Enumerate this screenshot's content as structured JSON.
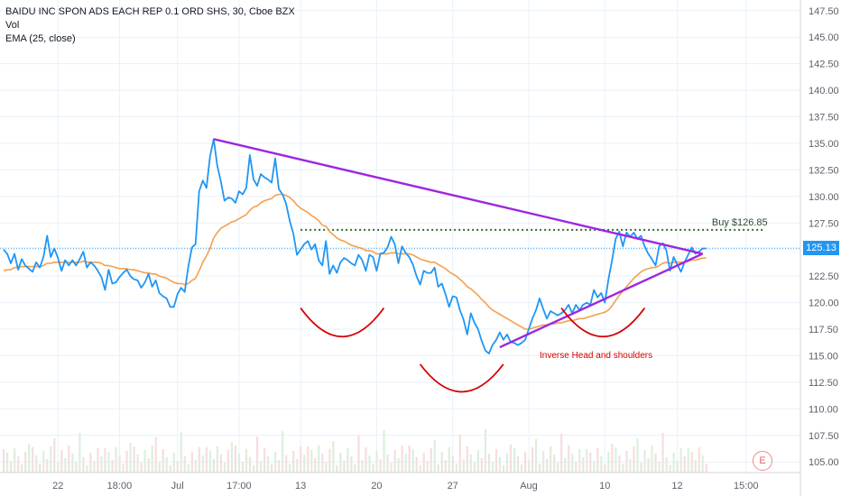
{
  "legend": {
    "title": "BAIDU INC SPON ADS EACH REP 0.1 ORD SHS, 30, Cboe BZX",
    "vol": "Vol",
    "ema": "EMA (25, close)"
  },
  "colors": {
    "price": "#2196f3",
    "ema": "#f5a04d",
    "triangle": "#9c27e0",
    "shoulders": "#d50000",
    "buy_line": "#2e6b2e",
    "last_price_line": "#2196f3",
    "grid": "#e9f1fb"
  },
  "last_price_label": "125.13",
  "logo_letter": "E",
  "chart_data": {
    "type": "line",
    "ylim": [
      104,
      148.5
    ],
    "y_ticks": [
      105,
      107.5,
      110,
      112.5,
      115,
      117.5,
      120,
      122.5,
      125,
      127.5,
      130,
      132.5,
      135,
      137.5,
      140,
      142.5,
      145,
      147.5
    ],
    "y_tick_labels": [
      "105.00",
      "107.50",
      "110.00",
      "112.50",
      "115.00",
      "117.50",
      "120.00",
      "122.50",
      "125.00",
      "127.50",
      "130.00",
      "132.50",
      "135.00",
      "137.50",
      "140.00",
      "142.50",
      "145.00",
      "147.50"
    ],
    "x_tick_labels": [
      "22",
      "18:00",
      "Jul",
      "17:00",
      "13",
      "20",
      "27",
      "Aug",
      "10",
      "12",
      "15:00"
    ],
    "x_tick_index": [
      15,
      32,
      48,
      65,
      82,
      103,
      124,
      145,
      166,
      186,
      205
    ],
    "x_range": [
      -1,
      220
    ],
    "grid": true,
    "last_price": 125.13,
    "series": [
      {
        "role": "price",
        "values": [
          125.0,
          124.6,
          123.7,
          124.6,
          123.1,
          124.1,
          123.5,
          123.2,
          122.9,
          123.8,
          123.3,
          124.3,
          126.3,
          124.3,
          125.1,
          124.2,
          123.0,
          124.0,
          123.5,
          124.0,
          123.5,
          124.1,
          124.8,
          123.3,
          123.8,
          123.5,
          123.0,
          122.4,
          121.2,
          123.1,
          121.8,
          121.9,
          122.4,
          122.8,
          123.1,
          122.5,
          122.2,
          122.1,
          121.4,
          121.9,
          122.7,
          121.5,
          122.1,
          120.9,
          120.6,
          120.4,
          119.6,
          119.6,
          120.8,
          121.4,
          121.0,
          123.4,
          125.2,
          125.5,
          130.5,
          131.5,
          130.8,
          133.8,
          135.4,
          132.9,
          131.4,
          129.6,
          129.9,
          129.8,
          129.4,
          130.5,
          130.2,
          130.8,
          133.9,
          131.6,
          131.0,
          132.1,
          131.8,
          131.6,
          131.3,
          133.6,
          130.7,
          130.2,
          129.3,
          127.7,
          126.5,
          124.5,
          125.0,
          125.5,
          125.8,
          125.0,
          125.5,
          124.0,
          123.5,
          125.8,
          122.7,
          123.5,
          122.8,
          123.8,
          124.2,
          124.0,
          123.7,
          123.5,
          124.5,
          124.0,
          123.0,
          124.5,
          124.3,
          123.0,
          124.6,
          124.7,
          125.2,
          126.2,
          125.5,
          123.7,
          125.3,
          124.7,
          124.3,
          123.6,
          122.5,
          121.7,
          123.0,
          122.8,
          122.8,
          123.3,
          121.5,
          121.8,
          120.8,
          119.6,
          120.6,
          120.5,
          119.3,
          118.4,
          117.0,
          119.0,
          118.1,
          117.5,
          116.4,
          115.5,
          115.2,
          116.0,
          116.5,
          117.2,
          116.5,
          117.0,
          116.3,
          116.2,
          116.0,
          116.2,
          116.5,
          117.5,
          118.5,
          119.3,
          120.4,
          119.4,
          118.5,
          119.2,
          119.0,
          118.8,
          119.0,
          119.3,
          119.8,
          119.0,
          119.8,
          119.3,
          119.8,
          120.0,
          119.8,
          121.2,
          120.5,
          120.9,
          120.0,
          122.2,
          124.0,
          126.0,
          126.7,
          125.3,
          126.6,
          126.2,
          126.6,
          126.0,
          126.3,
          125.3,
          124.6,
          124.1,
          123.5,
          125.3,
          125.6,
          124.9,
          123.0,
          124.3,
          123.6,
          122.9,
          123.8,
          124.5,
          125.2,
          124.6,
          124.8,
          125.1,
          125.1
        ],
        "ema": [
          123.0,
          123.1,
          123.1,
          123.3,
          123.3,
          123.4,
          123.4,
          123.4,
          123.4,
          123.4,
          123.4,
          123.5,
          123.7,
          123.7,
          123.8,
          123.8,
          123.8,
          123.8,
          123.8,
          123.8,
          123.8,
          123.8,
          123.9,
          123.8,
          123.8,
          123.8,
          123.8,
          123.7,
          123.5,
          123.5,
          123.4,
          123.3,
          123.2,
          123.2,
          123.2,
          123.1,
          123.1,
          123.0,
          122.9,
          122.8,
          122.8,
          122.7,
          122.7,
          122.5,
          122.4,
          122.3,
          122.1,
          121.9,
          121.8,
          121.8,
          121.7,
          121.8,
          122.1,
          122.3,
          123.0,
          123.8,
          124.4,
          125.1,
          126.1,
          126.6,
          127.0,
          127.2,
          127.4,
          127.6,
          127.7,
          127.9,
          128.1,
          128.3,
          128.7,
          129.0,
          129.1,
          129.4,
          129.6,
          129.7,
          129.8,
          130.1,
          130.2,
          130.2,
          130.1,
          129.9,
          129.6,
          129.2,
          128.9,
          128.7,
          128.5,
          128.2,
          128.0,
          127.7,
          127.3,
          127.2,
          126.7,
          126.4,
          126.1,
          125.9,
          125.8,
          125.6,
          125.4,
          125.3,
          125.2,
          125.1,
          124.9,
          124.9,
          124.8,
          124.6,
          124.6,
          124.6,
          124.6,
          124.7,
          124.7,
          124.6,
          124.6,
          124.6,
          124.6,
          124.5,
          124.3,
          124.1,
          124.0,
          123.9,
          123.8,
          123.8,
          123.6,
          123.4,
          123.2,
          122.9,
          122.7,
          122.5,
          122.2,
          121.9,
          121.5,
          121.3,
          121.0,
          120.7,
          120.3,
          120.0,
          119.6,
          119.3,
          119.1,
          118.9,
          118.7,
          118.5,
          118.3,
          118.1,
          117.9,
          117.7,
          117.5,
          117.5,
          117.6,
          117.7,
          117.8,
          117.9,
          117.9,
          118.0,
          118.0,
          118.1,
          118.1,
          118.2,
          118.3,
          118.3,
          118.4,
          118.5,
          118.5,
          118.6,
          118.7,
          118.8,
          118.9,
          119.0,
          119.1,
          119.3,
          119.7,
          120.2,
          120.7,
          121.1,
          121.5,
          121.9,
          122.3,
          122.6,
          122.9,
          123.1,
          123.2,
          123.3,
          123.3,
          123.5,
          123.7,
          123.8,
          123.7,
          123.8,
          123.8,
          123.8,
          123.8,
          123.9,
          124.0,
          124.0,
          124.1,
          124.2,
          124.2
        ]
      }
    ],
    "annotations": {
      "triangle": {
        "a": [
          58,
          135.4
        ],
        "b": [
          137,
          115.8
        ],
        "apex": [
          193,
          124.6
        ]
      },
      "buy_line": {
        "from": [
          82,
          126.85
        ],
        "to": [
          210,
          126.85
        ],
        "label": "Buy $126.85"
      },
      "head_and_shoulders_label": "Inverse Head and shoulders",
      "arcs": [
        {
          "x0": 82,
          "x1": 105,
          "y0": 119.5,
          "yb": 116.8
        },
        {
          "x0": 115,
          "x1": 138,
          "y0": 114.2,
          "yb": 111.6
        },
        {
          "x0": 154,
          "x1": 177,
          "y0": 119.5,
          "yb": 116.8
        }
      ]
    }
  }
}
